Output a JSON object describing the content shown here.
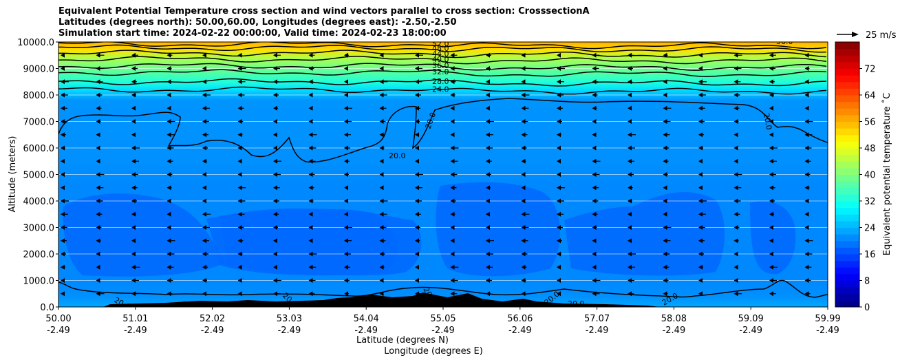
{
  "title_lines": [
    "Equivalent Potential Temperature cross section and wind vectors parallel to cross section: CrosssectionA",
    "Latitudes (degrees north): 50.00,60.00, Longitudes (degrees east): -2.50,-2.50",
    "Simulation start time: 2024-02-22 00:00:00, Valid time: 2024-02-23 18:00:00"
  ],
  "chart_data": {
    "type": "contour",
    "ylabel": "Altitude (meters)",
    "xlabel_lat": "Latitude (degrees N)",
    "xlabel_lon": "Longitude (degrees E)",
    "ylim": [
      0,
      10000
    ],
    "yticks": [
      "0.0",
      "1000.0",
      "2000.0",
      "3000.0",
      "4000.0",
      "5000.0",
      "6000.0",
      "7000.0",
      "8000.0",
      "9000.0",
      "10000.0"
    ],
    "xticks": [
      {
        "lat": "50.00",
        "lon": "-2.49"
      },
      {
        "lat": "51.01",
        "lon": "-2.49"
      },
      {
        "lat": "52.02",
        "lon": "-2.49"
      },
      {
        "lat": "53.03",
        "lon": "-2.49"
      },
      {
        "lat": "54.04",
        "lon": "-2.49"
      },
      {
        "lat": "55.05",
        "lon": "-2.49"
      },
      {
        "lat": "56.06",
        "lon": "-2.49"
      },
      {
        "lat": "57.07",
        "lon": "-2.49"
      },
      {
        "lat": "58.08",
        "lon": "-2.49"
      },
      {
        "lat": "59.09",
        "lon": "-2.49"
      },
      {
        "lat": "59.99",
        "lon": "-2.49"
      }
    ],
    "grid": "horizontal",
    "colorbar": {
      "label": "Equivalent potential temperature ˚C",
      "range": [
        0,
        80
      ],
      "ticks": [
        "0",
        "8",
        "16",
        "24",
        "32",
        "40",
        "48",
        "56",
        "64",
        "72"
      ],
      "colormap": "jet"
    },
    "contour_labels": [
      "52.0",
      "48.0",
      "44.0",
      "40.0",
      "36.0",
      "32.0",
      "28.0",
      "24.0",
      "20.0",
      "56.0"
    ],
    "wind_key": {
      "label": "25 m/s",
      "direction": "right"
    },
    "wind_direction": "left",
    "terrain_color": "#000000"
  }
}
